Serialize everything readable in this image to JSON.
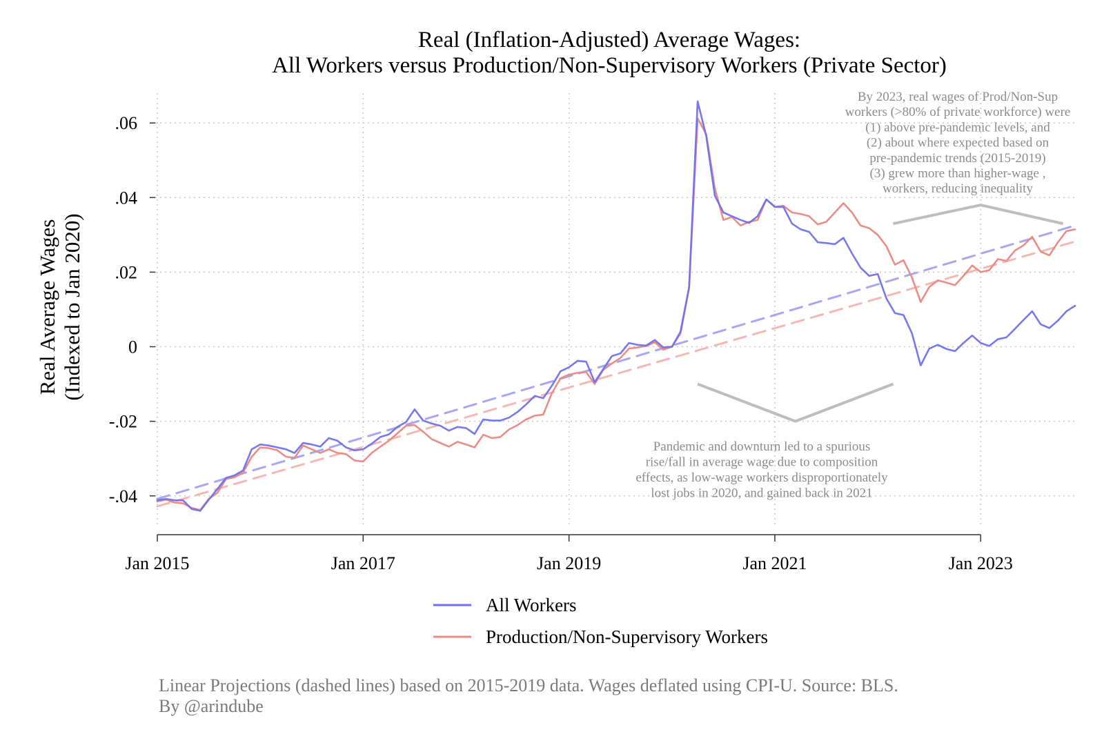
{
  "chart_data": {
    "type": "line",
    "title": [
      "Real (Inflation-Adjusted) Average Wages:",
      "All Workers versus Production/Non-Supervisory Workers (Private Sector)"
    ],
    "ylabel": [
      "Real Average Wages",
      "(Indexed to Jan 2020)"
    ],
    "x_ticks": [
      {
        "value": 2015.0,
        "label": "Jan 2015"
      },
      {
        "value": 2017.0,
        "label": "Jan 2017"
      },
      {
        "value": 2019.0,
        "label": "Jan 2019"
      },
      {
        "value": 2021.0,
        "label": "Jan 2021"
      },
      {
        "value": 2023.0,
        "label": "Jan 2023"
      }
    ],
    "y_ticks": [
      {
        "value": -0.04,
        "label": "-.04"
      },
      {
        "value": -0.02,
        "label": "-.02"
      },
      {
        "value": 0,
        "label": "0"
      },
      {
        "value": 0.02,
        "label": ".02"
      },
      {
        "value": 0.04,
        "label": ".04"
      },
      {
        "value": 0.06,
        "label": ".06"
      }
    ],
    "xlim": [
      2014.98,
      2023.93
    ],
    "ylim": [
      -0.048,
      0.068
    ],
    "grid": true,
    "legend_position": "bottom",
    "series": [
      {
        "name": "All Workers",
        "color": "#7070ee",
        "style": "solid",
        "x": [
          2015.0,
          2015.083,
          2015.167,
          2015.25,
          2015.333,
          2015.417,
          2015.5,
          2015.583,
          2015.667,
          2015.75,
          2015.833,
          2015.917,
          2016.0,
          2016.083,
          2016.167,
          2016.25,
          2016.333,
          2016.417,
          2016.5,
          2016.583,
          2016.667,
          2016.75,
          2016.833,
          2016.917,
          2017.0,
          2017.083,
          2017.167,
          2017.25,
          2017.333,
          2017.417,
          2017.5,
          2017.583,
          2017.667,
          2017.75,
          2017.833,
          2017.917,
          2018.0,
          2018.083,
          2018.167,
          2018.25,
          2018.333,
          2018.417,
          2018.5,
          2018.583,
          2018.667,
          2018.75,
          2018.833,
          2018.917,
          2019.0,
          2019.083,
          2019.167,
          2019.25,
          2019.333,
          2019.417,
          2019.5,
          2019.583,
          2019.667,
          2019.75,
          2019.833,
          2019.917,
          2020.0,
          2020.083,
          2020.167,
          2020.25,
          2020.333,
          2020.417,
          2020.5,
          2020.583,
          2020.667,
          2020.75,
          2020.833,
          2020.917,
          2021.0,
          2021.083,
          2021.167,
          2021.25,
          2021.333,
          2021.417,
          2021.5,
          2021.583,
          2021.667,
          2021.75,
          2021.833,
          2021.917,
          2022.0,
          2022.083,
          2022.167,
          2022.25,
          2022.333,
          2022.417,
          2022.5,
          2022.583,
          2022.667,
          2022.75,
          2022.833,
          2022.917,
          2023.0,
          2023.083,
          2023.167,
          2023.25,
          2023.333,
          2023.417,
          2023.5,
          2023.583,
          2023.667,
          2023.75,
          2023.833,
          2023.917
        ],
        "y": [
          -0.0412,
          -0.0408,
          -0.0412,
          -0.0412,
          -0.0435,
          -0.044,
          -0.041,
          -0.0382,
          -0.0352,
          -0.0345,
          -0.0332,
          -0.0275,
          -0.0262,
          -0.0265,
          -0.027,
          -0.0275,
          -0.0285,
          -0.0258,
          -0.0262,
          -0.0268,
          -0.0245,
          -0.0252,
          -0.027,
          -0.0278,
          -0.0275,
          -0.026,
          -0.0242,
          -0.0235,
          -0.0215,
          -0.0202,
          -0.0168,
          -0.0198,
          -0.0206,
          -0.0212,
          -0.0225,
          -0.0215,
          -0.0218,
          -0.0234,
          -0.0195,
          -0.0198,
          -0.0198,
          -0.019,
          -0.0175,
          -0.0155,
          -0.0132,
          -0.0138,
          -0.0105,
          -0.0066,
          -0.0055,
          -0.0038,
          -0.004,
          -0.0095,
          -0.006,
          -0.0025,
          -0.0018,
          0.001,
          0.0005,
          0.0003,
          0.0018,
          -0.0002,
          0.0,
          0.004,
          0.016,
          0.0658,
          0.0565,
          0.0405,
          0.036,
          0.035,
          0.034,
          0.0332,
          0.035,
          0.0395,
          0.0375,
          0.0375,
          0.033,
          0.0315,
          0.0308,
          0.028,
          0.0278,
          0.0275,
          0.0292,
          0.025,
          0.0212,
          0.019,
          0.0195,
          0.013,
          0.009,
          0.0085,
          0.0035,
          -0.005,
          -0.0005,
          0.0005,
          -0.0006,
          -0.0012,
          0.001,
          0.003,
          0.001,
          0.0002,
          0.002,
          0.0025,
          0.0048,
          0.0072,
          0.0095,
          0.006,
          0.005,
          0.007,
          0.0095,
          0.011
        ]
      },
      {
        "name": "Production/Non-Supervisory Workers",
        "color": "#ea8d86",
        "style": "solid",
        "x": [
          2015.0,
          2015.083,
          2015.167,
          2015.25,
          2015.333,
          2015.417,
          2015.5,
          2015.583,
          2015.667,
          2015.75,
          2015.833,
          2015.917,
          2016.0,
          2016.083,
          2016.167,
          2016.25,
          2016.333,
          2016.417,
          2016.5,
          2016.583,
          2016.667,
          2016.75,
          2016.833,
          2016.917,
          2017.0,
          2017.083,
          2017.167,
          2017.25,
          2017.333,
          2017.417,
          2017.5,
          2017.583,
          2017.667,
          2017.75,
          2017.833,
          2017.917,
          2018.0,
          2018.083,
          2018.167,
          2018.25,
          2018.333,
          2018.417,
          2018.5,
          2018.583,
          2018.667,
          2018.75,
          2018.833,
          2018.917,
          2019.0,
          2019.083,
          2019.167,
          2019.25,
          2019.333,
          2019.417,
          2019.5,
          2019.583,
          2019.667,
          2019.75,
          2019.833,
          2019.917,
          2020.0,
          2020.083,
          2020.167,
          2020.25,
          2020.333,
          2020.417,
          2020.5,
          2020.583,
          2020.667,
          2020.75,
          2020.833,
          2020.917,
          2021.0,
          2021.083,
          2021.167,
          2021.25,
          2021.333,
          2021.417,
          2021.5,
          2021.583,
          2021.667,
          2021.75,
          2021.833,
          2021.917,
          2022.0,
          2022.083,
          2022.167,
          2022.25,
          2022.333,
          2022.417,
          2022.5,
          2022.583,
          2022.667,
          2022.75,
          2022.833,
          2022.917,
          2023.0,
          2023.083,
          2023.167,
          2023.25,
          2023.333,
          2023.417,
          2023.5,
          2023.583,
          2023.667,
          2023.75,
          2023.833,
          2023.917
        ],
        "y": [
          -0.0415,
          -0.041,
          -0.0418,
          -0.042,
          -0.0432,
          -0.0438,
          -0.0408,
          -0.0392,
          -0.0355,
          -0.035,
          -0.0338,
          -0.0295,
          -0.027,
          -0.0272,
          -0.0278,
          -0.0295,
          -0.0298,
          -0.0265,
          -0.0275,
          -0.0285,
          -0.0275,
          -0.0285,
          -0.0288,
          -0.0305,
          -0.0308,
          -0.0285,
          -0.0268,
          -0.0252,
          -0.0232,
          -0.0212,
          -0.021,
          -0.0228,
          -0.0248,
          -0.0258,
          -0.0268,
          -0.0255,
          -0.0262,
          -0.027,
          -0.0236,
          -0.0245,
          -0.0242,
          -0.0222,
          -0.021,
          -0.0195,
          -0.0185,
          -0.0182,
          -0.0125,
          -0.0085,
          -0.0075,
          -0.007,
          -0.0068,
          -0.01,
          -0.0062,
          -0.0045,
          -0.003,
          -0.0005,
          -0.0002,
          0.0002,
          0.0012,
          -0.0008,
          0.0,
          0.0035,
          0.0158,
          0.0612,
          0.057,
          0.0425,
          0.034,
          0.0348,
          0.0325,
          0.0335,
          0.034,
          0.0395,
          0.0375,
          0.0378,
          0.036,
          0.0356,
          0.035,
          0.0328,
          0.0335,
          0.036,
          0.0385,
          0.036,
          0.0325,
          0.0318,
          0.03,
          0.027,
          0.022,
          0.0232,
          0.0185,
          0.012,
          0.016,
          0.0178,
          0.0172,
          0.0165,
          0.019,
          0.0218,
          0.02,
          0.0205,
          0.0235,
          0.023,
          0.0258,
          0.0272,
          0.0295,
          0.0255,
          0.0245,
          0.028,
          0.031,
          0.0315
        ]
      },
      {
        "name": "",
        "color": "#a6a6f2",
        "style": "dashed",
        "x": [
          2015.0,
          2023.917
        ],
        "y": [
          -0.0408,
          0.0325
        ]
      },
      {
        "name": "",
        "color": "#f2b8b4",
        "style": "dashed",
        "x": [
          2015.0,
          2023.917
        ],
        "y": [
          -0.0428,
          0.0282
        ]
      }
    ],
    "annotations": [
      {
        "lines": [
          "By 2023, real wages of Prod/Non-Sup",
          "workers (>80% of private workforce) were",
          "(1) above pre-pandemic levels, and",
          "(2) about where expected based on",
          "pre-pandemic trends (2015-2019)",
          "(3) grew more than higher-wage ,",
          "workers, reducing inequality"
        ],
        "bracket": [
          [
            2022.15,
            0.033
          ],
          [
            2023.0,
            0.038
          ],
          [
            2023.8,
            0.033
          ]
        ]
      },
      {
        "lines": [
          "Pandemic and downturn led to a spurious",
          "rise/fall in average wage due to composition",
          "effects, as low-wage workers disproportionately",
          "lost jobs in 2020, and gained back in 2021"
        ],
        "bracket": [
          [
            2020.25,
            -0.01
          ],
          [
            2021.2,
            -0.02
          ],
          [
            2022.15,
            -0.01
          ]
        ]
      }
    ],
    "footnote": [
      "Linear Projections (dashed lines) based on 2015-2019 data. Wages deflated using CPI-U. Source: BLS.",
      "By @arindube"
    ]
  }
}
